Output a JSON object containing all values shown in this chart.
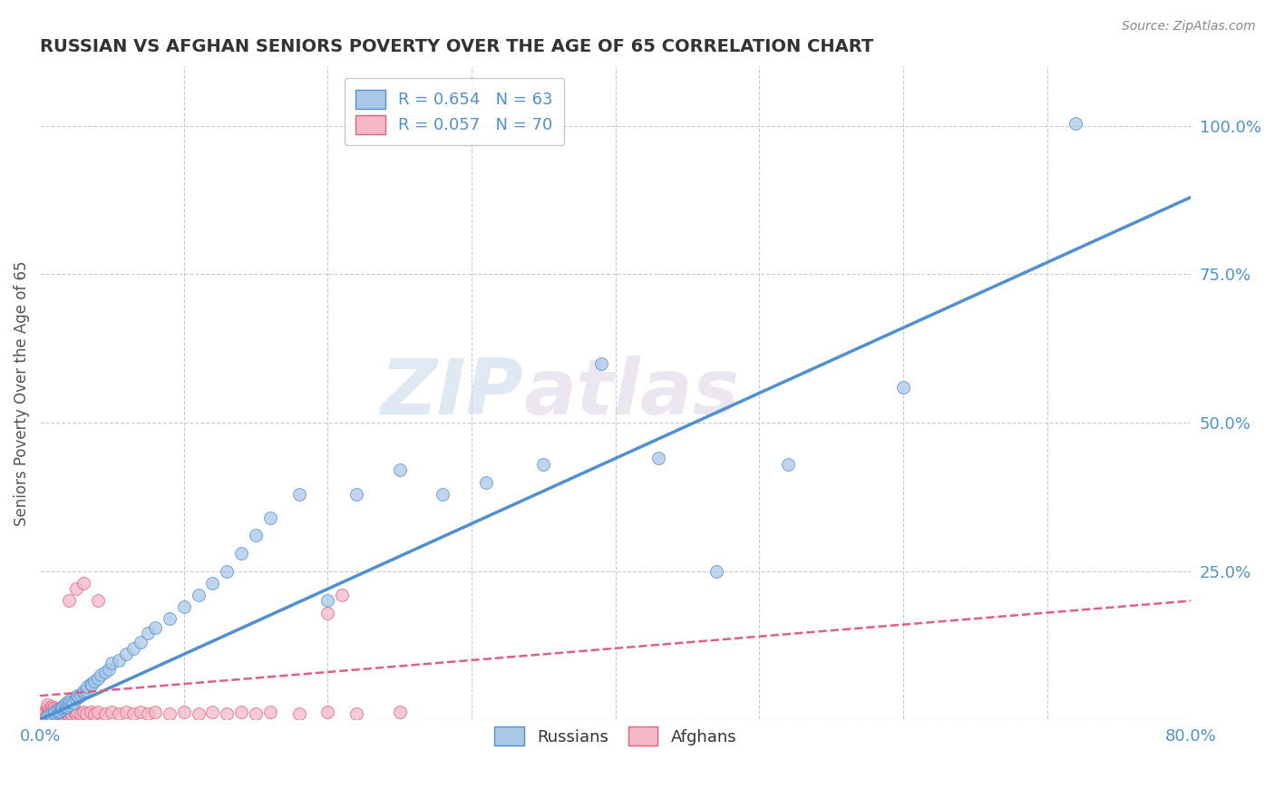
{
  "title": "RUSSIAN VS AFGHAN SENIORS POVERTY OVER THE AGE OF 65 CORRELATION CHART",
  "source": "Source: ZipAtlas.com",
  "ylabel": "Seniors Poverty Over the Age of 65",
  "xlim": [
    0.0,
    0.8
  ],
  "ylim": [
    0.0,
    1.1
  ],
  "xticks": [
    0.0,
    0.1,
    0.2,
    0.3,
    0.4,
    0.5,
    0.6,
    0.7,
    0.8
  ],
  "xticklabels": [
    "0.0%",
    "",
    "",
    "",
    "",
    "",
    "",
    "",
    "80.0%"
  ],
  "ytick_positions": [
    0.0,
    0.25,
    0.5,
    0.75,
    1.0
  ],
  "ytick_labels": [
    "",
    "25.0%",
    "50.0%",
    "75.0%",
    "100.0%"
  ],
  "legend_russian": "R = 0.654   N = 63",
  "legend_afghan": "R = 0.057   N = 70",
  "russian_color": "#a8c8e8",
  "afghan_color": "#f4b8c8",
  "russian_line_color": "#5090d0",
  "afghan_line_color": "#e06080",
  "watermark_zip": "ZIP",
  "watermark_atlas": "atlas",
  "grid_color": "#cccccc",
  "background_color": "#ffffff",
  "title_color": "#333333",
  "axis_label_color": "#555555",
  "tick_label_color": "#5090d0",
  "russians_scatter_x": [
    0.005,
    0.007,
    0.008,
    0.01,
    0.01,
    0.012,
    0.013,
    0.014,
    0.015,
    0.015,
    0.016,
    0.017,
    0.018,
    0.018,
    0.019,
    0.02,
    0.02,
    0.021,
    0.022,
    0.023,
    0.025,
    0.026,
    0.027,
    0.028,
    0.03,
    0.03,
    0.032,
    0.033,
    0.035,
    0.036,
    0.038,
    0.04,
    0.042,
    0.045,
    0.048,
    0.05,
    0.055,
    0.06,
    0.065,
    0.07,
    0.075,
    0.08,
    0.09,
    0.1,
    0.11,
    0.12,
    0.13,
    0.14,
    0.15,
    0.16,
    0.18,
    0.2,
    0.22,
    0.25,
    0.28,
    0.31,
    0.35,
    0.39,
    0.43,
    0.47,
    0.52,
    0.6,
    0.72
  ],
  "russians_scatter_y": [
    0.005,
    0.008,
    0.006,
    0.01,
    0.012,
    0.015,
    0.012,
    0.014,
    0.018,
    0.02,
    0.022,
    0.025,
    0.02,
    0.028,
    0.022,
    0.025,
    0.03,
    0.032,
    0.03,
    0.028,
    0.035,
    0.04,
    0.038,
    0.042,
    0.045,
    0.048,
    0.05,
    0.055,
    0.06,
    0.058,
    0.065,
    0.07,
    0.075,
    0.08,
    0.085,
    0.095,
    0.1,
    0.11,
    0.12,
    0.13,
    0.145,
    0.155,
    0.17,
    0.19,
    0.21,
    0.23,
    0.25,
    0.28,
    0.31,
    0.34,
    0.38,
    0.2,
    0.38,
    0.42,
    0.38,
    0.4,
    0.43,
    0.6,
    0.44,
    0.25,
    0.43,
    0.56,
    1.005
  ],
  "afghans_scatter_x": [
    0.002,
    0.003,
    0.004,
    0.004,
    0.005,
    0.005,
    0.005,
    0.006,
    0.006,
    0.007,
    0.007,
    0.008,
    0.008,
    0.008,
    0.009,
    0.009,
    0.01,
    0.01,
    0.011,
    0.011,
    0.012,
    0.012,
    0.013,
    0.013,
    0.014,
    0.014,
    0.015,
    0.015,
    0.016,
    0.017,
    0.018,
    0.019,
    0.02,
    0.021,
    0.022,
    0.023,
    0.025,
    0.026,
    0.028,
    0.03,
    0.032,
    0.035,
    0.038,
    0.04,
    0.045,
    0.05,
    0.055,
    0.06,
    0.065,
    0.07,
    0.075,
    0.08,
    0.09,
    0.1,
    0.11,
    0.12,
    0.13,
    0.14,
    0.15,
    0.16,
    0.18,
    0.2,
    0.22,
    0.25,
    0.02,
    0.025,
    0.03,
    0.04,
    0.2,
    0.21
  ],
  "afghans_scatter_y": [
    0.005,
    0.008,
    0.01,
    0.015,
    0.02,
    0.025,
    0.007,
    0.012,
    0.018,
    0.008,
    0.014,
    0.01,
    0.016,
    0.022,
    0.008,
    0.018,
    0.012,
    0.02,
    0.01,
    0.018,
    0.008,
    0.015,
    0.01,
    0.018,
    0.008,
    0.014,
    0.01,
    0.018,
    0.008,
    0.012,
    0.01,
    0.012,
    0.008,
    0.012,
    0.01,
    0.014,
    0.008,
    0.012,
    0.01,
    0.012,
    0.01,
    0.012,
    0.01,
    0.012,
    0.01,
    0.012,
    0.01,
    0.012,
    0.01,
    0.012,
    0.01,
    0.012,
    0.01,
    0.012,
    0.01,
    0.012,
    0.01,
    0.012,
    0.01,
    0.012,
    0.01,
    0.012,
    0.01,
    0.012,
    0.2,
    0.22,
    0.23,
    0.2,
    0.18,
    0.21
  ],
  "rus_line_x0": 0.0,
  "rus_line_y0": 0.0,
  "rus_line_x1": 0.8,
  "rus_line_y1": 0.88,
  "afg_line_x0": 0.0,
  "afg_line_y0": 0.04,
  "afg_line_x1": 0.8,
  "afg_line_y1": 0.2
}
